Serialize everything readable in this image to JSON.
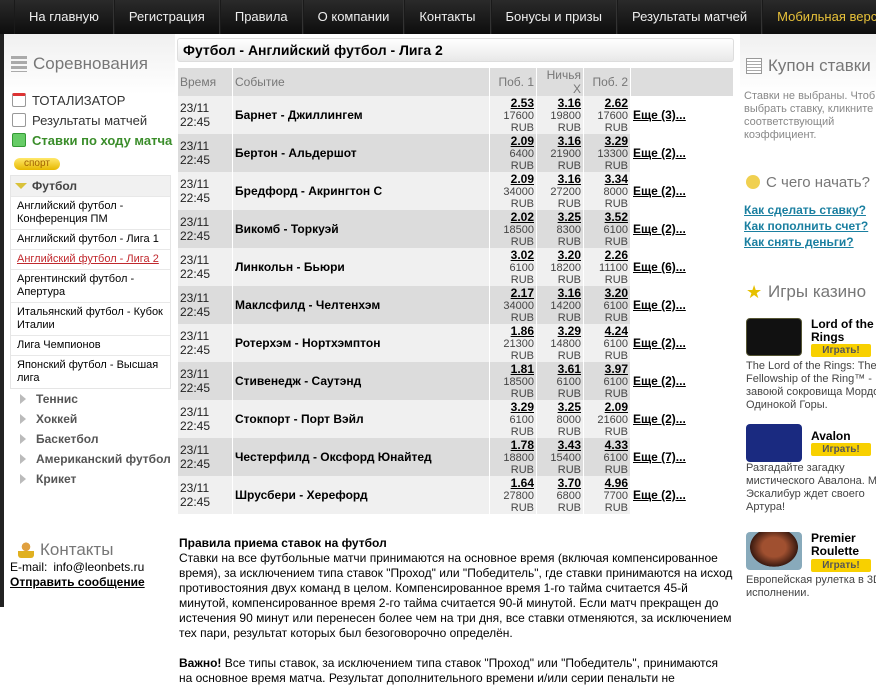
{
  "nav": [
    "На главную",
    "Регистрация",
    "Правила",
    "О компании",
    "Контакты",
    "Бонусы и призы",
    "Результаты матчей",
    "Мобильная версия"
  ],
  "colors": {
    "nav_bg": "#111111",
    "mobile_link": "#e8c23a",
    "live": "#3a8d2a",
    "active_league": "#c0282d",
    "help_link": "#1a7fa0",
    "play_button": "#f8d000"
  },
  "left": {
    "competitions_title": "Соревнования",
    "quick_links": [
      "ТОТАЛИЗАТОР",
      "Результаты матчей",
      "Ставки по ходу матча"
    ],
    "sport_badge": "спорт",
    "current_sport": "Футбол",
    "leagues": [
      "Английский футбол - Конференция ПМ",
      "Английский футбол - Лига 1",
      "Английский футбол - Лига 2",
      "Аргентинский футбол - Апертура",
      "Итальянский футбол - Кубок Италии",
      "Лига Чемпионов",
      "Японский футбол - Высшая лига"
    ],
    "active_league": "Английский футбол - Лига 2",
    "sports": [
      "Теннис",
      "Хоккей",
      "Баскетбол",
      "Американский футбол",
      "Крикет"
    ],
    "contacts_title": "Контакты",
    "email_label": "E-mail:",
    "email": "info@leonbets.ru",
    "send_message": "Отправить сообщение"
  },
  "main": {
    "title": "Футбол - Английский футбол - Лига 2",
    "columns": [
      "Время",
      "Событие",
      "Поб. 1",
      "Ничья X",
      "Поб. 2"
    ],
    "matches": [
      {
        "date": "23/11",
        "time": "22:45",
        "event": "Барнет - Джиллингем",
        "o1": "2.53",
        "s1": "17600 RUB",
        "ox": "3.16",
        "sx": "19800 RUB",
        "o2": "2.62",
        "s2": "17600 RUB",
        "more": "Еще (3)..."
      },
      {
        "date": "23/11",
        "time": "22:45",
        "event": "Бертон - Альдершот",
        "o1": "2.09",
        "s1": "6400 RUB",
        "ox": "3.16",
        "sx": "21900 RUB",
        "o2": "3.29",
        "s2": "13300 RUB",
        "more": "Еще (2)..."
      },
      {
        "date": "23/11",
        "time": "22:45",
        "event": "Бредфорд - Акрингтон С",
        "o1": "2.09",
        "s1": "34000 RUB",
        "ox": "3.16",
        "sx": "27200 RUB",
        "o2": "3.34",
        "s2": "8000 RUB",
        "more": "Еще (2)..."
      },
      {
        "date": "23/11",
        "time": "22:45",
        "event": "Викомб - Торкуэй",
        "o1": "2.02",
        "s1": "18500 RUB",
        "ox": "3.25",
        "sx": "8300 RUB",
        "o2": "3.52",
        "s2": "6100 RUB",
        "more": "Еще (2)..."
      },
      {
        "date": "23/11",
        "time": "22:45",
        "event": "Линкольн - Бьюри",
        "o1": "3.02",
        "s1": "6100 RUB",
        "ox": "3.20",
        "sx": "18200 RUB",
        "o2": "2.26",
        "s2": "11100 RUB",
        "more": "Еще (6)..."
      },
      {
        "date": "23/11",
        "time": "22:45",
        "event": "Маклсфилд - Челтенхэм",
        "o1": "2.17",
        "s1": "34000 RUB",
        "ox": "3.16",
        "sx": "14200 RUB",
        "o2": "3.20",
        "s2": "6100 RUB",
        "more": "Еще (2)..."
      },
      {
        "date": "23/11",
        "time": "22:45",
        "event": "Ротерхэм - Нортхэмптон",
        "o1": "1.86",
        "s1": "21300 RUB",
        "ox": "3.29",
        "sx": "14800 RUB",
        "o2": "4.24",
        "s2": "6100 RUB",
        "more": "Еще (2)..."
      },
      {
        "date": "23/11",
        "time": "22:45",
        "event": "Стивенедж - Саутэнд",
        "o1": "1.81",
        "s1": "18500 RUB",
        "ox": "3.61",
        "sx": "6100 RUB",
        "o2": "3.97",
        "s2": "6100 RUB",
        "more": "Еще (2)..."
      },
      {
        "date": "23/11",
        "time": "22:45",
        "event": "Стокпорт - Порт Вэйл",
        "o1": "3.29",
        "s1": "6100 RUB",
        "ox": "3.25",
        "sx": "8000 RUB",
        "o2": "2.09",
        "s2": "21600 RUB",
        "more": "Еще (2)..."
      },
      {
        "date": "23/11",
        "time": "22:45",
        "event": "Честерфилд - Оксфорд Юнайтед",
        "o1": "1.78",
        "s1": "18800 RUB",
        "ox": "3.43",
        "sx": "15400 RUB",
        "o2": "4.33",
        "s2": "6100 RUB",
        "more": "Еще (7)..."
      },
      {
        "date": "23/11",
        "time": "22:45",
        "event": "Шрусбери - Херефорд",
        "o1": "1.64",
        "s1": "27800 RUB",
        "ox": "3.70",
        "sx": "6800 RUB",
        "o2": "4.96",
        "s2": "7700 RUB",
        "more": "Еще (2)..."
      }
    ],
    "rules_title": "Правила приема ставок на футбол",
    "rules_text": "Ставки на все футбольные матчи принимаются на основное время (включая компенсированное время), за исключением типа ставок \"Проход\" или \"Победитель\", где ставки принимаются на исход противостояния двух команд в целом. Компенсированное время 1-го тайма считается 45-й минутой, компенсированное время 2-го тайма считается 90-й минутой. Если матч прекращен до истечения 90 минут или перенесен более чем на три дня, все ставки отменяются, за исключением тех пари, результат которых был безоговорочно определён.",
    "important_label": "Важно!",
    "important_text": " Все типы ставок, за исключением типа ставок \"Проход\" или \"Победитель\", принимаются на основное время матча. Результат дополнительного времени и/или серии пенальти не"
  },
  "right": {
    "coupon_title": "Купон ставки",
    "coupon_text": [
      "Ставки не выбраны. Чтоб",
      "выбрать ставку, кликните",
      "соответствующий",
      "коэффициент."
    ],
    "start_title": "С чего начать?",
    "help_links": [
      "Как сделать ставку?",
      "Как пополнить счет?",
      "Как снять деньги?"
    ],
    "casino_title": "Игры казино",
    "play_label": "Играть!",
    "games": [
      {
        "name": "Lord of the Rings",
        "desc": [
          "The Lord of the Rings: The",
          "Fellowship of the Ring™ -",
          "завоюй сокровища Мордо",
          "Одинокой Горы."
        ]
      },
      {
        "name": "Avalon",
        "desc": [
          "Разгадайте загадку",
          "мистического Авалона. М",
          "Эскалибур ждет своего",
          "Артура!"
        ]
      },
      {
        "name": "Premier Roulette",
        "desc": [
          "Европейская рулетка в 3D",
          "исполнении."
        ]
      }
    ]
  }
}
